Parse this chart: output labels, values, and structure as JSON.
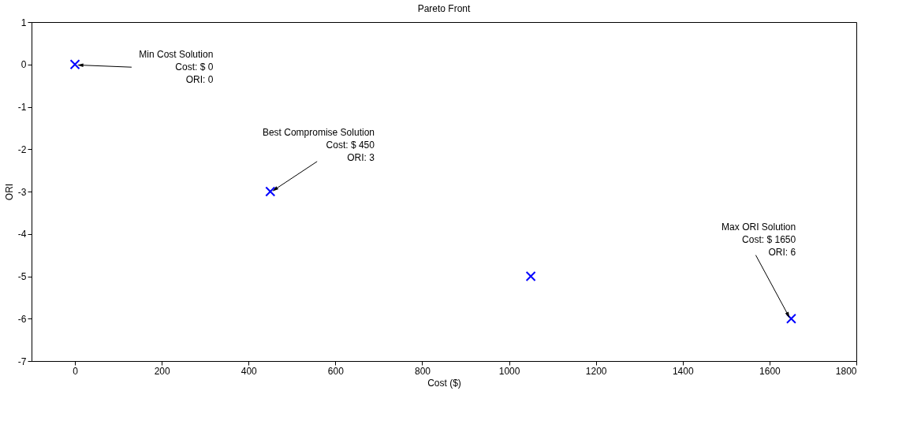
{
  "chart_data": {
    "type": "scatter",
    "title": "Pareto Front",
    "xlabel": "Cost ($)",
    "ylabel": "ORI",
    "x": [
      0,
      450,
      1050,
      1650
    ],
    "series": [
      {
        "color": "#0000ff",
        "values": [
          0,
          -3,
          -5,
          -6
        ]
      }
    ],
    "xlim": [
      -100,
      1800
    ],
    "xticks": [
      0,
      200,
      400,
      600,
      800,
      1000,
      1200,
      1400,
      1600,
      1800
    ],
    "ylim": [
      -7,
      1
    ],
    "yticks": [
      -7,
      -6,
      -5,
      -4,
      -3,
      -2,
      -1,
      0,
      1
    ],
    "grid": false,
    "marker": "cross",
    "annotations": [
      {
        "text": "Min Cost Solution\nCost: $ 0\nORI:     0",
        "x": 0,
        "y": 0
      },
      {
        "text": "Best Compromise Solution\nCost: $ 450\nORI:       3",
        "x": 450,
        "y": -3
      },
      {
        "text": "Max ORI Solution\nCost: $ 1650\nORI:       6",
        "x": 1650,
        "y": -6
      }
    ]
  }
}
